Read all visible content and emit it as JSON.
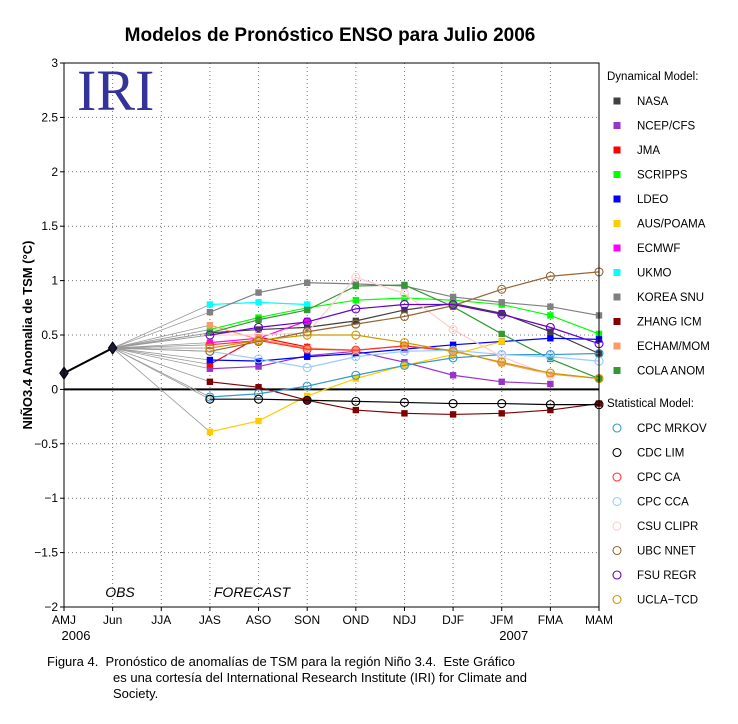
{
  "caption": {
    "line1": "Figura 4.  Pronóstico de anomalías de TSM para la región Niño 3.4.  Este Gráfico",
    "line2": "es una cortesía del International Research Institute (IRI) for Climate and",
    "line3": "Society."
  },
  "logo_text": "IRI",
  "chart_data": {
    "type": "line",
    "title": "Modelos de Pronóstico ENSO para Julio 2006",
    "xlabel": "",
    "ylabel": "NIÑO3.4 Anomalia de TSM (°C)",
    "categories": [
      "AMJ",
      "Jun",
      "JJA",
      "JAS",
      "ASO",
      "SON",
      "OND",
      "NDJ",
      "DJF",
      "JFM",
      "FMA",
      "MAM"
    ],
    "year_labels": [
      {
        "label": "2006",
        "category_index": 0
      },
      {
        "label": "2007",
        "category_index": 9
      }
    ],
    "ylim": [
      -2,
      3
    ],
    "yticks": [
      3,
      2.5,
      2,
      1.5,
      1,
      0.5,
      0,
      -0.5,
      -1,
      -1.5,
      -2
    ],
    "ytick_labels": [
      "3",
      "2.5",
      "2",
      "1.5",
      "1",
      "0.5",
      "0",
      "−0.5",
      "−1",
      "−1.5",
      "−2"
    ],
    "grid": true,
    "legend_position": "right",
    "annotations": [
      {
        "text": "OBS"
      },
      {
        "text": "FORECAST"
      }
    ],
    "connector_color": "#9a9a9a",
    "observed": {
      "color": "#000000",
      "marker": "diamond",
      "values": [
        0.15,
        0.38,
        null,
        null,
        null,
        null,
        null,
        null,
        null,
        null,
        null,
        null
      ]
    },
    "legend_groups": [
      {
        "title": "Dynamical Model:",
        "marker": "square",
        "series": [
          {
            "name": "NASA",
            "color": "#404040",
            "values": [
              null,
              null,
              null,
              0.52,
              0.55,
              0.57,
              0.63,
              0.73,
              0.79,
              0.7,
              0.53,
              0.33
            ]
          },
          {
            "name": "NCEP/CFS",
            "color": "#9933cc",
            "values": [
              null,
              null,
              null,
              0.19,
              0.21,
              0.31,
              0.35,
              0.25,
              0.13,
              0.07,
              0.05,
              null
            ]
          },
          {
            "name": "JMA",
            "color": "#ff0000",
            "values": [
              null,
              null,
              null,
              0.23,
              0.48,
              0.39,
              null,
              null,
              null,
              null,
              null,
              null
            ]
          },
          {
            "name": "SCRIPPS",
            "color": "#00ff00",
            "values": [
              null,
              null,
              null,
              0.55,
              0.66,
              0.75,
              0.82,
              0.84,
              0.82,
              0.78,
              0.68,
              0.51
            ]
          },
          {
            "name": "LDEO",
            "color": "#0000ff",
            "values": [
              null,
              null,
              null,
              0.27,
              0.26,
              0.3,
              0.33,
              0.37,
              0.41,
              0.44,
              0.47,
              0.46
            ]
          },
          {
            "name": "AUS/POAMA",
            "color": "#ffcc00",
            "values": [
              null,
              null,
              null,
              -0.39,
              -0.29,
              -0.06,
              0.1,
              0.22,
              0.32,
              0.44,
              null,
              null
            ]
          },
          {
            "name": "ECMWF",
            "color": "#ff00ff",
            "values": [
              null,
              null,
              null,
              0.43,
              0.47,
              0.63,
              null,
              null,
              null,
              null,
              null,
              null
            ]
          },
          {
            "name": "UKMO",
            "color": "#00ffff",
            "values": [
              null,
              null,
              null,
              0.78,
              0.8,
              0.78,
              null,
              null,
              null,
              null,
              null,
              null
            ]
          },
          {
            "name": "KOREA SNU",
            "color": "#808080",
            "values": [
              null,
              null,
              null,
              0.71,
              0.89,
              0.98,
              0.97,
              0.95,
              0.85,
              0.8,
              0.76,
              0.68
            ]
          },
          {
            "name": "ZHANG ICM",
            "color": "#800000",
            "values": [
              null,
              null,
              null,
              0.07,
              0.02,
              -0.1,
              -0.19,
              -0.22,
              -0.23,
              -0.22,
              -0.19,
              -0.13
            ]
          },
          {
            "name": "ECHAM/MOM",
            "color": "#ff9966",
            "values": [
              null,
              null,
              null,
              0.59,
              0.46,
              0.38,
              0.36,
              0.4,
              0.36,
              0.24,
              0.14,
              0.1
            ]
          },
          {
            "name": "COLA ANOM",
            "color": "#339933",
            "values": [
              null,
              null,
              null,
              0.52,
              0.64,
              0.73,
              0.95,
              0.96,
              0.76,
              0.51,
              0.28,
              0.1
            ]
          }
        ]
      },
      {
        "title": "Statistical Model:",
        "marker": "circle",
        "series": [
          {
            "name": "CPC MRKOV",
            "color": "#3399cc",
            "values": [
              null,
              null,
              null,
              -0.07,
              -0.04,
              0.03,
              0.13,
              0.22,
              0.29,
              0.32,
              0.32,
              0.33
            ]
          },
          {
            "name": "CDC LIM",
            "color": "#000000",
            "values": [
              null,
              null,
              null,
              -0.09,
              -0.09,
              -0.1,
              -0.11,
              -0.12,
              -0.13,
              -0.13,
              -0.14,
              -0.14
            ]
          },
          {
            "name": "CPC CA",
            "color": "#ff3333",
            "values": [
              null,
              null,
              null,
              0.41,
              0.45,
              0.37,
              0.36,
              0.4,
              0.35,
              null,
              null,
              null
            ]
          },
          {
            "name": "CPC CCA",
            "color": "#99ccff",
            "values": [
              null,
              null,
              null,
              0.35,
              0.28,
              0.2,
              0.3,
              0.35,
              0.36,
              0.32,
              0.3,
              0.26
            ]
          },
          {
            "name": "CSU CLIPR",
            "color": "#ffcccc",
            "values": [
              null,
              null,
              null,
              0.5,
              0.5,
              0.52,
              1.03,
              0.88,
              0.55,
              0.3,
              0.13,
              null
            ]
          },
          {
            "name": "UBC NNET",
            "color": "#996633",
            "values": [
              null,
              null,
              null,
              0.35,
              0.44,
              0.53,
              0.6,
              0.67,
              0.77,
              0.92,
              1.04,
              1.08
            ]
          },
          {
            "name": "FSU REGR",
            "color": "#6600cc",
            "values": [
              null,
              null,
              null,
              0.5,
              0.57,
              0.62,
              0.74,
              0.78,
              0.78,
              0.69,
              0.57,
              0.42
            ]
          },
          {
            "name": "UCLA−TCD",
            "color": "#cc9900",
            "values": [
              null,
              null,
              null,
              0.38,
              0.45,
              0.5,
              0.5,
              0.43,
              0.35,
              0.25,
              0.15,
              0.1
            ]
          }
        ]
      }
    ]
  }
}
